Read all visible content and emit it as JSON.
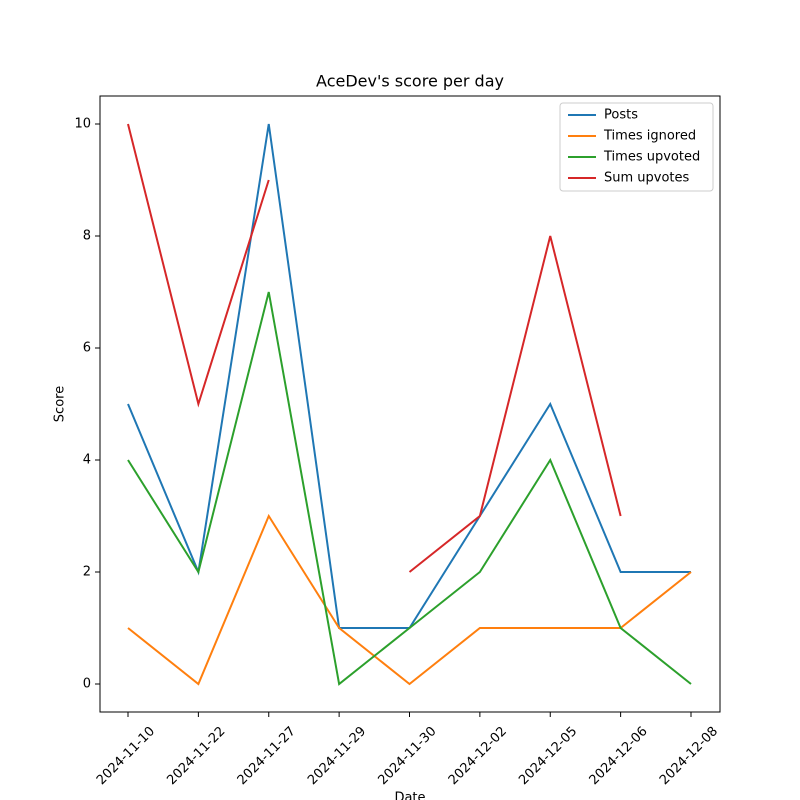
{
  "chart_data": {
    "type": "line",
    "title": "AceDev's score per day",
    "xlabel": "Date",
    "ylabel": "Score",
    "categories": [
      "2024-11-10",
      "2024-11-22",
      "2024-11-27",
      "2024-11-29",
      "2024-11-30",
      "2024-12-02",
      "2024-12-05",
      "2024-12-06",
      "2024-12-08"
    ],
    "series": [
      {
        "name": "Posts",
        "color": "#1f77b4",
        "values": [
          5,
          2,
          10,
          1,
          1,
          3,
          5,
          2,
          2
        ]
      },
      {
        "name": "Times ignored",
        "color": "#ff7f0e",
        "values": [
          1,
          0,
          3,
          1,
          0,
          1,
          1,
          1,
          2
        ]
      },
      {
        "name": "Times upvoted",
        "color": "#2ca02c",
        "values": [
          4,
          2,
          7,
          0,
          1,
          2,
          4,
          1,
          0
        ]
      },
      {
        "name": "Sum upvotes",
        "color": "#d62728",
        "values": [
          10,
          5,
          9,
          null,
          2,
          3,
          8,
          3,
          null
        ]
      }
    ],
    "ylim": [
      -0.5,
      10.5
    ],
    "yticks": [
      0,
      2,
      4,
      6,
      8,
      10
    ],
    "grid": false,
    "legend": "upper right"
  }
}
